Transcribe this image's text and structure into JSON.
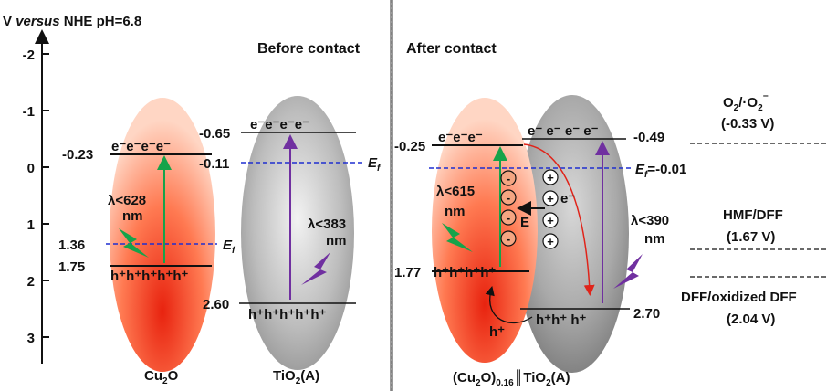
{
  "axis": {
    "label_prefix": "V ",
    "label_italic": "versus",
    "label_suffix": " NHE pH=6.8",
    "ticks": [
      "-2",
      "-1",
      "0",
      "1",
      "2",
      "3"
    ]
  },
  "panels": {
    "before": "Before contact",
    "after": "After contact"
  },
  "cu2o": {
    "cb_level": "-0.23",
    "vb_level": "1.75",
    "ef_level": "1.36",
    "electrons": "e⁻e⁻e⁻e⁻",
    "holes": "h⁺h⁺h⁺h⁺h⁺",
    "lambda": "λ<628",
    "lambda_unit": "nm",
    "ef": "E",
    "ef_sub": "f",
    "name": "Cu",
    "name_sub": "2",
    "name_end": "O"
  },
  "tio2": {
    "cb_level": "-0.65",
    "vb_level": "2.60",
    "ef_level": "-0.11",
    "electrons": "e⁻e⁻e⁻e⁻",
    "holes": "h⁺h⁺h⁺h⁺h⁺",
    "lambda": "λ<383",
    "lambda_unit": "nm",
    "ef": "E",
    "ef_sub": "f",
    "name": "TiO",
    "name_sub": "2",
    "name_end": "(A)"
  },
  "hetero": {
    "cu_cb": "-0.25",
    "cu_vb": "1.77",
    "ti_cb": "-0.49",
    "ti_vb": "2.70",
    "cu_electrons": "e⁻e⁻e⁻",
    "ti_electrons": "e⁻ e⁻ e⁻ e⁻",
    "cu_holes": "h⁺h⁺h⁺h⁺",
    "ti_holes": "h⁺h⁺ h⁺",
    "lambda_cu": "λ<615",
    "lambda_cu_unit": "nm",
    "lambda_ti": "λ<390",
    "lambda_ti_unit": "nm",
    "ef": "E",
    "ef_sub": "f",
    "ef_value": "=-0.01",
    "field": "E",
    "electron_label": "e⁻",
    "hole_label": "h⁺",
    "minus": "-",
    "plus": "+",
    "name_a": "(Cu",
    "name_a_sub": "2",
    "name_b": "O)",
    "name_b_sub": "0.16",
    "name_c": "║TiO",
    "name_c_sub": "2",
    "name_d": "(A)"
  },
  "redox": {
    "o2_a": "O",
    "o2_a_sub": "2",
    "o2_b": "/·O",
    "o2_b_sub": "2",
    "o2_c": "⁻",
    "o2_v": "(-0.33 V)",
    "hmf": "HMF/DFF",
    "hmf_v": "(1.67 V)",
    "dff": "DFF/oxidized DFF",
    "dff_v": "(2.04 V)"
  },
  "colors": {
    "lambda_green": "#16a34a",
    "lambda_purple": "#7030a0",
    "ef_blue": "#1f2fd0",
    "electron_red": "#e0241a"
  }
}
